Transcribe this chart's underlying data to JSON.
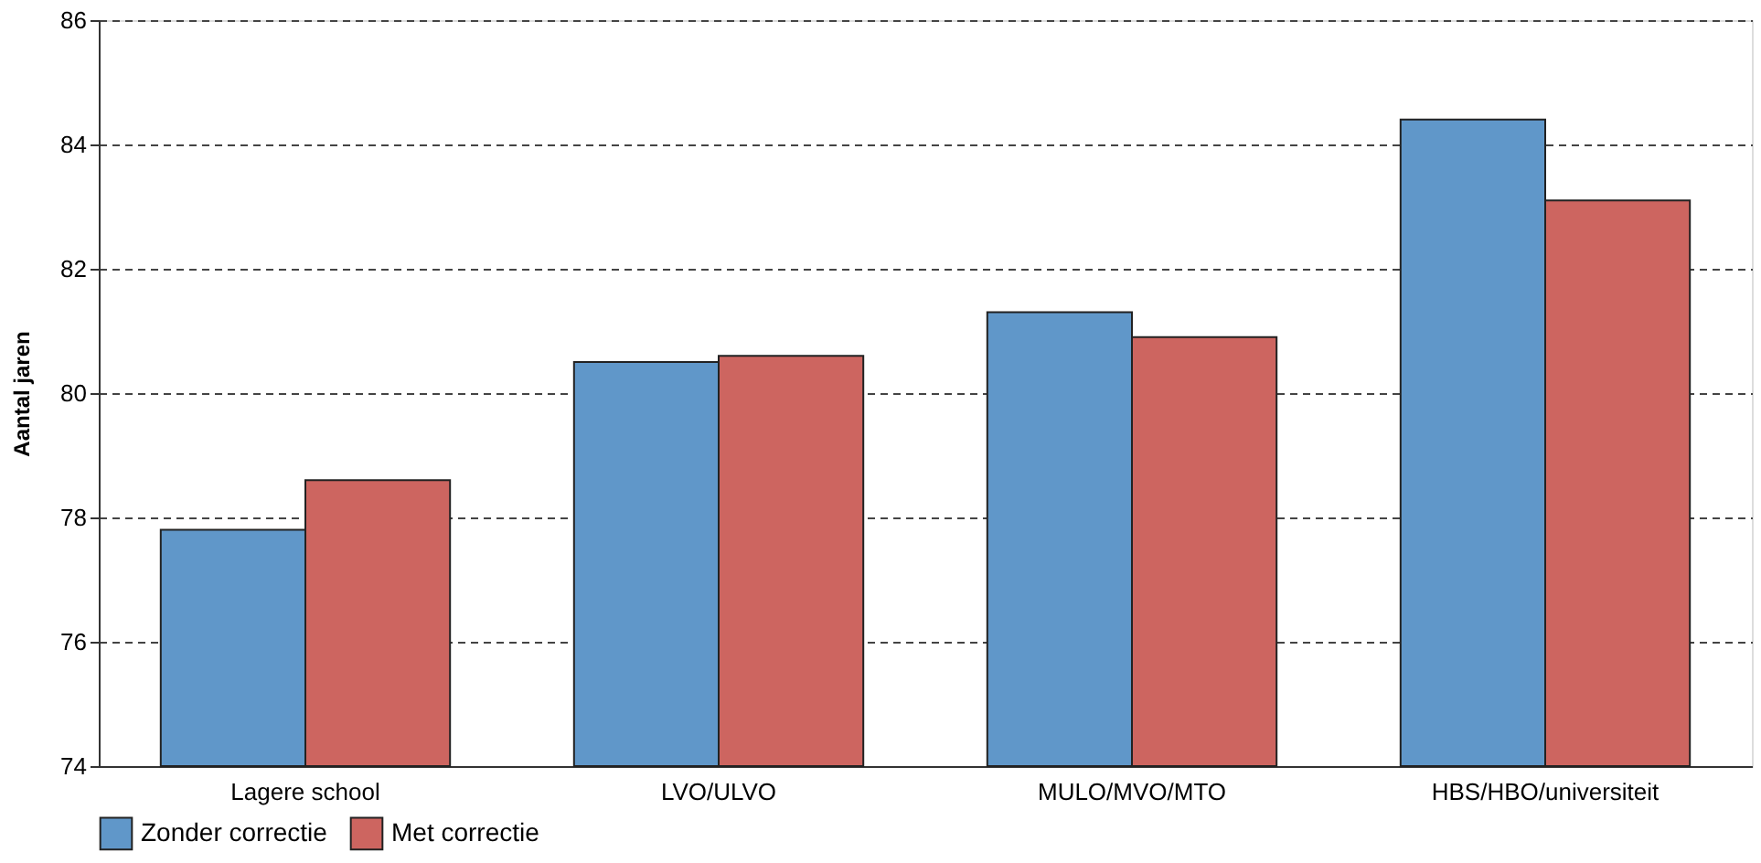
{
  "chart_data": {
    "type": "bar",
    "ylabel": "Aantal jaren",
    "categories": [
      "Lagere school",
      "LVO/ULVO",
      "MULO/MVO/MTO",
      "HBS/HBO/universiteit"
    ],
    "series": [
      {
        "name": "Zonder correctie",
        "color": "#6097c9",
        "values": [
          77.8,
          80.5,
          81.3,
          84.4
        ]
      },
      {
        "name": "Met correctie",
        "color": "#cd6560",
        "values": [
          78.6,
          80.6,
          80.9,
          83.1
        ]
      }
    ],
    "ylim": [
      74,
      86
    ],
    "yticks": [
      74,
      76,
      78,
      80,
      82,
      84,
      86
    ],
    "grid": "y",
    "legend": "bottom"
  }
}
